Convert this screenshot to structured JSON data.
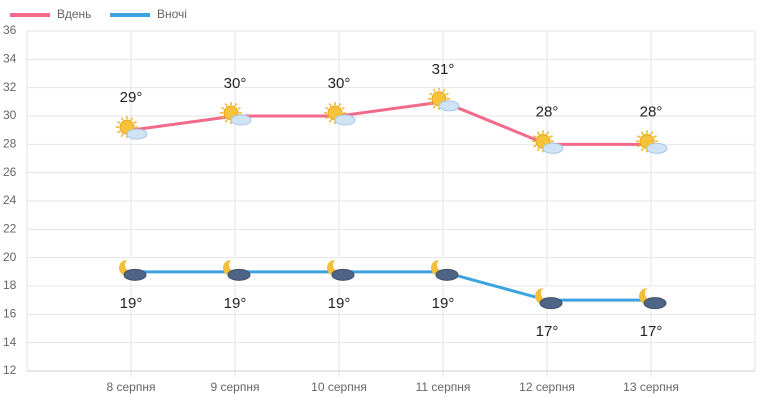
{
  "chart_data": {
    "type": "line",
    "categories": [
      "8 серпня",
      "9 серпня",
      "10 серпня",
      "11 серпня",
      "12 серпня",
      "13 серпня"
    ],
    "series": [
      {
        "name": "Вдень",
        "color": "#f26b8a",
        "values": [
          29,
          30,
          30,
          31,
          28,
          28
        ],
        "value_labels": [
          "29°",
          "30°",
          "30°",
          "31°",
          "28°",
          "28°"
        ]
      },
      {
        "name": "Вночі",
        "color": "#3ba3e0",
        "values": [
          19,
          19,
          19,
          19,
          17,
          17
        ],
        "value_labels": [
          "19°",
          "19°",
          "19°",
          "19°",
          "17°",
          "17°"
        ]
      }
    ],
    "ylim": [
      12,
      36
    ],
    "yticks": [
      12,
      14,
      16,
      18,
      20,
      22,
      24,
      26,
      28,
      30,
      32,
      34,
      36
    ],
    "grid": true,
    "legend": "top-left"
  }
}
